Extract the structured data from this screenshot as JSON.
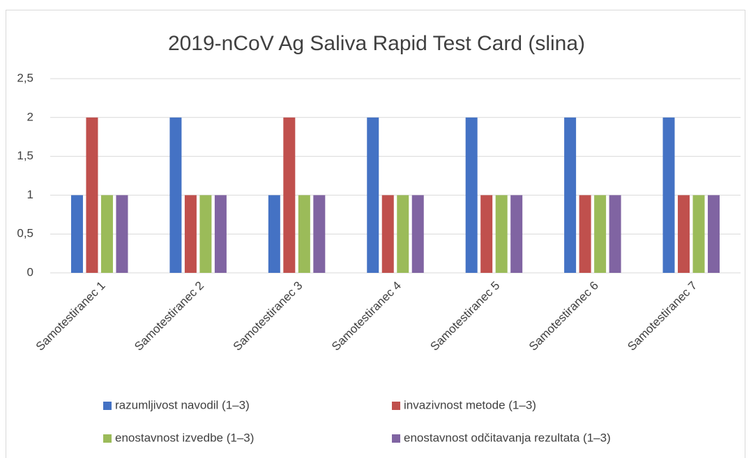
{
  "chart_data": {
    "type": "bar",
    "title": "2019-nCoV Ag Saliva Rapid Test Card (slina)",
    "categories": [
      "Samotestiranec 1",
      "Samotestiranec 2",
      "Samotestiranec 3",
      "Samotestiranec 4",
      "Samotestiranec 5",
      "Samotestiranec 6",
      "Samotestiranec 7"
    ],
    "series": [
      {
        "name": "razumljivost navodil (1–3)",
        "color": "#4472c4",
        "values": [
          1,
          2,
          1,
          2,
          2,
          2,
          2
        ]
      },
      {
        "name": "invazivnost metode (1–3)",
        "color": "#c0504d",
        "values": [
          2,
          1,
          2,
          1,
          1,
          1,
          1
        ]
      },
      {
        "name": "enostavnost izvedbe (1–3)",
        "color": "#9bbb59",
        "values": [
          1,
          1,
          1,
          1,
          1,
          1,
          1
        ]
      },
      {
        "name": "enostavnost odčitavanja rezultata (1–3)",
        "color": "#8064a2",
        "values": [
          1,
          1,
          1,
          1,
          1,
          1,
          1
        ]
      }
    ],
    "ylim": [
      0,
      2.5
    ],
    "yticks": [
      0,
      {
        "value": 0.5,
        "label": "0,5"
      },
      1,
      {
        "value": 1.5,
        "label": "1,5"
      },
      2,
      {
        "value": 2.5,
        "label": "2,5"
      }
    ],
    "grid": true,
    "legend": "bottom"
  }
}
